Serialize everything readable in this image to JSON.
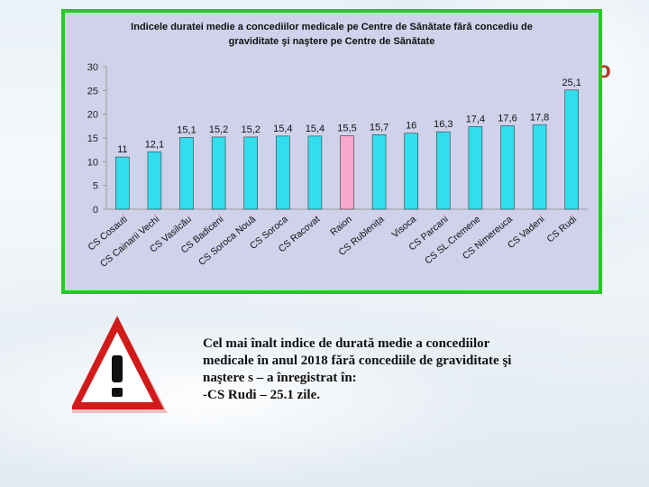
{
  "side_text": "o",
  "chart_data": {
    "type": "bar",
    "title_lines": [
      "Indicele duratei medie a concediilor medicale  pe Centre de Sănătate fără concediu de",
      "graviditate şi naştere pe Centre de Sănătate"
    ],
    "categories": [
      "CS Cosauti",
      "CS Cainarii Vechi",
      "CS Vasilcău",
      "CS Badiceni",
      "CS Soroca Nouă",
      "CS Soroca",
      "CS Racovat",
      "Raion",
      "CS Rublenița",
      "Visoca",
      "CS Parcani",
      "CS SL.Cremene",
      "CS Nimereuca",
      "CS Vadeni",
      "CS Rudi"
    ],
    "values": [
      11,
      12.1,
      15.1,
      15.2,
      15.2,
      15.4,
      15.4,
      15.5,
      15.7,
      16,
      16.3,
      17.4,
      17.6,
      17.8,
      25.1
    ],
    "value_labels": [
      "11",
      "12,1",
      "15,1",
      "15,2",
      "15,2",
      "15,4",
      "15,4",
      "15,5",
      "15,7",
      "16",
      "16,3",
      "17,4",
      "17,6",
      "17,8",
      "25,1"
    ],
    "highlight_category": "Raion",
    "ylim": [
      0,
      30
    ],
    "yticks": [
      0,
      5,
      10,
      15,
      20,
      25,
      30
    ],
    "grid": false,
    "legend": "none",
    "colors": {
      "bar": "#33ddee",
      "highlight": "#f7a8cc",
      "frame": "#22cc22",
      "plot_bg": "#cfd2ea"
    }
  },
  "note": {
    "lines": [
      "Cel mai înalt indice de durată medie a concediilor",
      "medicale în anul 2018 fără concediile de graviditate şi",
      "naştere s – a înregistrat în:",
      "-CS Rudi – 25.1 zile."
    ]
  },
  "icon": "warning-icon"
}
